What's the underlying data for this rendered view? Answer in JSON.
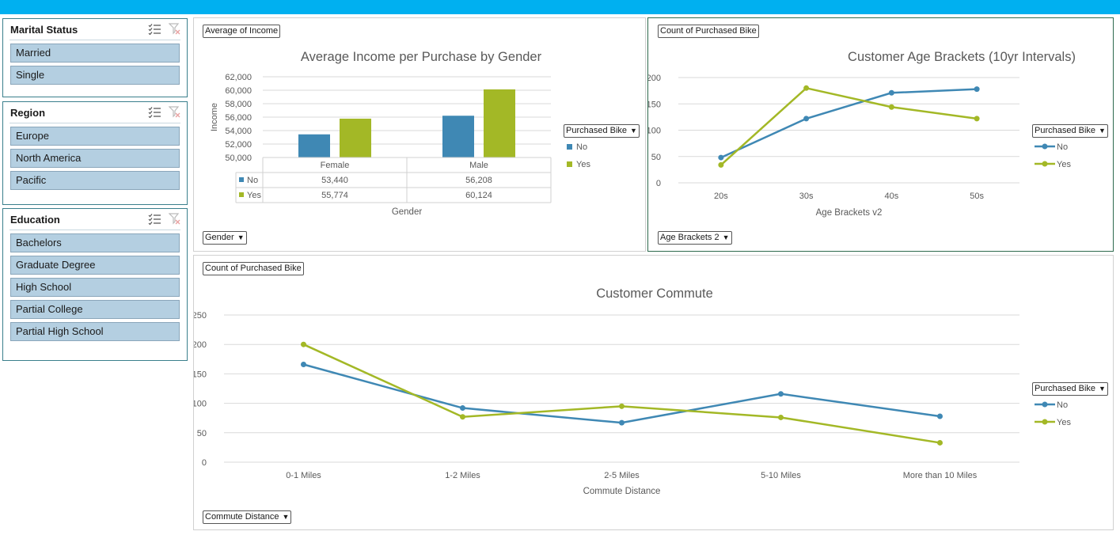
{
  "slicers": {
    "marital": {
      "title": "Marital Status",
      "items": [
        "Married",
        "Single"
      ]
    },
    "region": {
      "title": "Region",
      "items": [
        "Europe",
        "North America",
        "Pacific"
      ]
    },
    "education": {
      "title": "Education",
      "items": [
        "Bachelors",
        "Graduate Degree",
        "High School",
        "Partial College",
        "Partial High School"
      ]
    }
  },
  "colors": {
    "no": "#3f88b4",
    "yes": "#a3b826",
    "topbar": "#00b0f0"
  },
  "panels": {
    "income": {
      "value_button": "Average of Income",
      "axis_button": "Gender",
      "legend_button": "Purchased Bike",
      "legend_no": "No",
      "legend_yes": "Yes",
      "row_no": "No",
      "row_yes": "Yes"
    },
    "age": {
      "value_button": "Count of Purchased Bike",
      "axis_button": "Age Brackets 2",
      "legend_button": "Purchased Bike",
      "legend_no": "No",
      "legend_yes": "Yes"
    },
    "commute": {
      "value_button": "Count of Purchased Bike",
      "axis_button": "Commute Distance",
      "legend_button": "Purchased Bike",
      "legend_no": "No",
      "legend_yes": "Yes"
    }
  },
  "chart_data": [
    {
      "type": "bar",
      "title": "Average Income per Purchase by Gender",
      "xlabel": "Gender",
      "ylabel": "Income",
      "categories": [
        "Female",
        "Male"
      ],
      "series": [
        {
          "name": "No",
          "values": [
            53440,
            56208
          ],
          "labels": [
            "53,440",
            "56,208"
          ]
        },
        {
          "name": "Yes",
          "values": [
            55774,
            60124
          ],
          "labels": [
            "55,774",
            "60,124"
          ]
        }
      ],
      "ylim": [
        50000,
        62000
      ],
      "yticks": [
        50000,
        52000,
        54000,
        56000,
        58000,
        60000,
        62000
      ],
      "ytick_labels": [
        "50,000",
        "52,000",
        "54,000",
        "56,000",
        "58,000",
        "60,000",
        "62,000"
      ]
    },
    {
      "type": "line",
      "title": "Customer Age Brackets (10yr Intervals)",
      "xlabel": "Age Brackets v2",
      "ylabel": "",
      "categories": [
        "20s",
        "30s",
        "40s",
        "50s"
      ],
      "series": [
        {
          "name": "No",
          "values": [
            48,
            122,
            171,
            178
          ]
        },
        {
          "name": "Yes",
          "values": [
            34,
            180,
            144,
            122
          ]
        }
      ],
      "ylim": [
        0,
        200
      ],
      "yticks": [
        0,
        50,
        100,
        150,
        200
      ]
    },
    {
      "type": "line",
      "title": "Customer Commute",
      "xlabel": "Commute Distance",
      "ylabel": "",
      "categories": [
        "0-1 Miles",
        "1-2 Miles",
        "2-5 Miles",
        "5-10 Miles",
        "More than 10 Miles"
      ],
      "series": [
        {
          "name": "No",
          "values": [
            166,
            92,
            67,
            116,
            78
          ]
        },
        {
          "name": "Yes",
          "values": [
            200,
            77,
            95,
            76,
            33
          ]
        }
      ],
      "ylim": [
        0,
        250
      ],
      "yticks": [
        0,
        50,
        100,
        150,
        200,
        250
      ]
    }
  ]
}
